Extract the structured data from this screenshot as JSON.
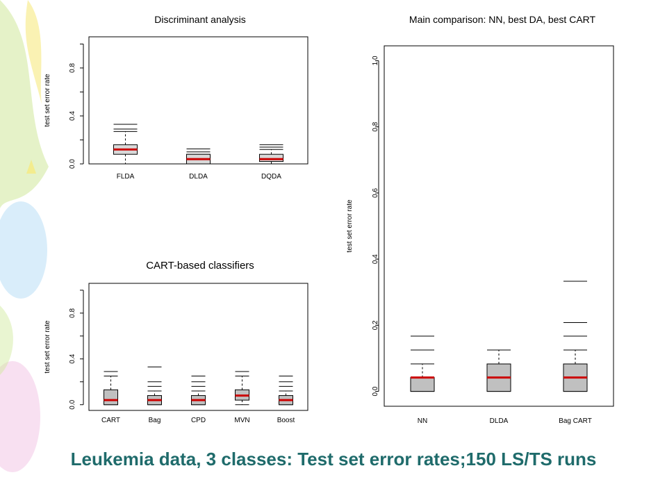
{
  "slide": {
    "caption": "Leukemia data, 3 classes: Test set error rates;150 LS/TS runs",
    "colors": {
      "caption": "#1f6b6b",
      "box_fill": "#c0c0c0",
      "box_fill_light": "#d9d9d9",
      "median": "#cc0000",
      "decor_green": "#cfe89a",
      "decor_blue": "#b9dff5",
      "decor_pink": "#f3c6e6",
      "decor_yellow": "#f6ea80"
    }
  },
  "chart_data": [
    {
      "type": "boxplot",
      "title": "Discriminant analysis",
      "ylabel": "test set error rate",
      "ylim": [
        0,
        1
      ],
      "yticks": [
        0.0,
        0.4,
        0.8
      ],
      "minor_yticks": [
        0.2,
        0.6,
        1.0
      ],
      "categories": [
        "FLDA",
        "DLDA",
        "DQDA"
      ],
      "box_fill": "#d9d9d9",
      "boxes": [
        {
          "q1": 0.08,
          "median": 0.12,
          "q3": 0.16,
          "whisker_low": 0.0,
          "whisker_high": 0.27,
          "outliers": [
            0.33,
            0.29
          ]
        },
        {
          "q1": 0.0,
          "median": 0.04,
          "q3": 0.08,
          "whisker_low": 0.0,
          "whisker_high": 0.08,
          "outliers": [
            0.125,
            0.1
          ]
        },
        {
          "q1": 0.02,
          "median": 0.04,
          "q3": 0.08,
          "whisker_low": 0.0,
          "whisker_high": 0.12,
          "outliers": [
            0.16,
            0.14
          ]
        }
      ]
    },
    {
      "type": "boxplot",
      "title": "CART-based classifiers",
      "ylabel": "test set error rate",
      "ylim": [
        0,
        1
      ],
      "yticks": [
        0.0,
        0.4,
        0.8
      ],
      "minor_yticks": [
        0.2,
        0.6,
        1.0
      ],
      "categories": [
        "CART",
        "Bag",
        "CPD",
        "MVN",
        "Boost"
      ],
      "box_fill": "#c0c0c0",
      "boxes": [
        {
          "q1": 0.0,
          "median": 0.04,
          "q3": 0.13,
          "whisker_low": 0.0,
          "whisker_high": 0.25,
          "outliers": [
            0.29
          ]
        },
        {
          "q1": 0.0,
          "median": 0.04,
          "q3": 0.08,
          "whisker_low": 0.0,
          "whisker_high": 0.12,
          "outliers": [
            0.33,
            0.2,
            0.16
          ]
        },
        {
          "q1": 0.0,
          "median": 0.04,
          "q3": 0.08,
          "whisker_low": 0.0,
          "whisker_high": 0.12,
          "outliers": [
            0.25,
            0.2,
            0.16
          ]
        },
        {
          "q1": 0.04,
          "median": 0.08,
          "q3": 0.13,
          "whisker_low": 0.0,
          "whisker_high": 0.25,
          "outliers": [
            0.29
          ]
        },
        {
          "q1": 0.0,
          "median": 0.04,
          "q3": 0.08,
          "whisker_low": 0.0,
          "whisker_high": 0.12,
          "outliers": [
            0.25,
            0.2,
            0.16
          ]
        }
      ]
    },
    {
      "type": "boxplot",
      "title": "Main comparison: NN, best DA, best CART",
      "ylabel": "test set error rate",
      "ylim": [
        0,
        1
      ],
      "yticks": [
        0.0,
        0.2,
        0.4,
        0.6,
        0.8,
        1.0
      ],
      "minor_yticks": [],
      "categories": [
        "NN",
        "DLDA",
        "Bag CART"
      ],
      "box_fill": "#c0c0c0",
      "boxes": [
        {
          "q1": 0.0,
          "median": 0.042,
          "q3": 0.042,
          "whisker_low": 0.0,
          "whisker_high": 0.083,
          "outliers": [
            0.167,
            0.125
          ]
        },
        {
          "q1": 0.0,
          "median": 0.042,
          "q3": 0.083,
          "whisker_low": 0.0,
          "whisker_high": 0.125,
          "outliers": []
        },
        {
          "q1": 0.0,
          "median": 0.042,
          "q3": 0.083,
          "whisker_low": 0.0,
          "whisker_high": 0.125,
          "outliers": [
            0.333,
            0.208,
            0.167
          ]
        }
      ]
    }
  ]
}
